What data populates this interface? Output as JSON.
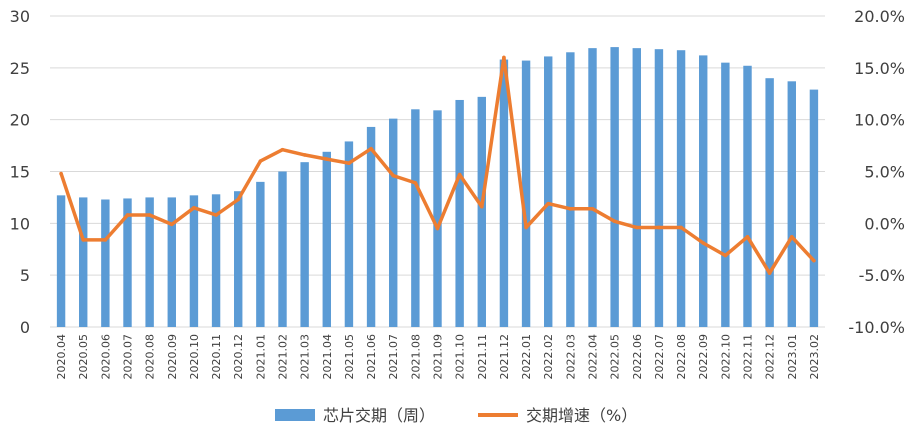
{
  "chart_data": {
    "type": "bar",
    "categories": [
      "2020.04",
      "2020.05",
      "2020.06",
      "2020.07",
      "2020.08",
      "2020.09",
      "2020.10",
      "2020.11",
      "2020.12",
      "2021.01",
      "2021.02",
      "2021.03",
      "2021.04",
      "2021.05",
      "2021.06",
      "2021.07",
      "2021.08",
      "2021.09",
      "2021.10",
      "2021.11",
      "2021.12",
      "2022.01",
      "2022.02",
      "2022.03",
      "2022.04",
      "2022.05",
      "2022.06",
      "2022.07",
      "2022.08",
      "2022.09",
      "2022.10",
      "2022.11",
      "2022.12",
      "2023.01",
      "2023.02"
    ],
    "series": [
      {
        "name": "芯片交期（周）",
        "type": "bar",
        "axis": "left",
        "color": "#5B9BD5",
        "values": [
          12.7,
          12.5,
          12.3,
          12.4,
          12.5,
          12.5,
          12.7,
          12.8,
          13.1,
          14.0,
          15.0,
          15.9,
          16.9,
          17.9,
          19.3,
          20.1,
          21.0,
          20.9,
          21.9,
          22.2,
          25.8,
          25.7,
          26.1,
          26.5,
          26.9,
          27.0,
          26.9,
          26.8,
          26.7,
          26.2,
          25.5,
          25.2,
          24.0,
          23.7,
          22.9
        ]
      },
      {
        "name": "交期增速（%）",
        "type": "line",
        "axis": "right",
        "color": "#ED7D31",
        "values": [
          4.8,
          -1.6,
          -1.6,
          0.8,
          0.8,
          -0.1,
          1.5,
          0.8,
          2.3,
          6.0,
          7.1,
          6.6,
          6.2,
          5.8,
          7.2,
          4.6,
          3.9,
          -0.5,
          4.7,
          1.6,
          16.0,
          -0.4,
          1.9,
          1.4,
          1.4,
          0.2,
          -0.4,
          -0.4,
          -0.4,
          -1.9,
          -3.1,
          -1.3,
          -4.8,
          -1.3,
          -3.6
        ]
      }
    ],
    "y_left": {
      "min": 0,
      "max": 30,
      "ticks": [
        "0",
        "5",
        "10",
        "15",
        "20",
        "25",
        "30"
      ]
    },
    "y_right": {
      "min": -10,
      "max": 20,
      "ticks": [
        "-10.0%",
        "-5.0%",
        "0.0%",
        "5.0%",
        "10.0%",
        "15.0%",
        "20.0%"
      ]
    },
    "legend": {
      "position": "bottom"
    },
    "grid": true
  }
}
